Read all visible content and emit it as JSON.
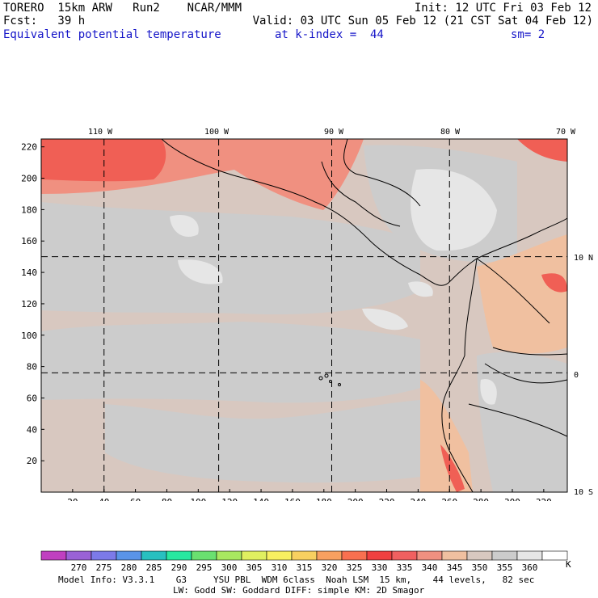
{
  "header": {
    "model": "TORERO  15km ARW   Run2    NCAR/MMM",
    "init": "Init: 12 UTC Fri 03 Feb 12",
    "fcst": "Fcst:   39 h",
    "valid": "Valid: 03 UTC Sun 05 Feb 12 (21 CST Sat 04 Feb 12)",
    "field": "Equivalent potential temperature",
    "kindex": "at k-index =  44",
    "smooth": "sm= 2"
  },
  "map": {
    "top_ticks": [
      "110 W",
      "100 W",
      "90 W",
      "80 W",
      "70 W"
    ],
    "right_ticks": [
      "10 N",
      "0",
      "10 S"
    ],
    "left_ticks": [
      "220",
      "200",
      "180",
      "160",
      "140",
      "120",
      "100",
      "80",
      "60",
      "40",
      "20"
    ],
    "bottom_ticks": [
      "20",
      "40",
      "60",
      "80",
      "100",
      "120",
      "140",
      "160",
      "180",
      "200",
      "220",
      "240",
      "260",
      "280",
      "300",
      "320"
    ],
    "grid_x": [
      40,
      113,
      185,
      260
    ],
    "grid_y": [
      150,
      76
    ]
  },
  "colorbar": {
    "colors": [
      "#c040c0",
      "#9a62d6",
      "#7c7ae8",
      "#5a94e8",
      "#28c0c0",
      "#28e8a0",
      "#6ae070",
      "#a8e860",
      "#e0f060",
      "#f8f060",
      "#f8d060",
      "#f8a060",
      "#f87050",
      "#f04040",
      "#f06060",
      "#f09080",
      "#f0c0a0",
      "#d8c8c0",
      "#cccccc",
      "#e6e6e6",
      "#ffffff"
    ],
    "labels": [
      "270",
      "275",
      "280",
      "285",
      "290",
      "295",
      "300",
      "305",
      "310",
      "315",
      "320",
      "325",
      "330",
      "335",
      "340",
      "345",
      "350",
      "355",
      "360"
    ],
    "unit": "K"
  },
  "footer": {
    "line1": "Model Info: V3.3.1    G3     YSU PBL  WDM 6class  Noah LSM  15 km,    44 levels,   82 sec",
    "line2": "LW: Godd SW: Goddard DIFF: simple KM: 2D Smagor"
  }
}
